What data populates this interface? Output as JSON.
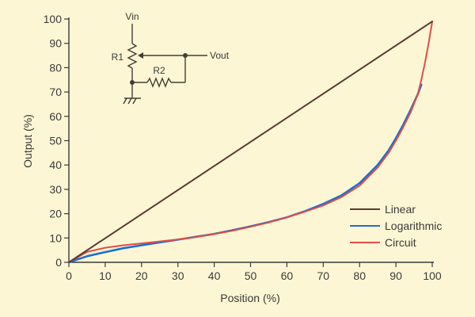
{
  "colors": {
    "background": "#fdf6d4",
    "axis": "#3a3a3a",
    "text": "#3a3a3a",
    "schematic": "#4a3a34",
    "linear": "#5b3a33",
    "logarithmic": "#1a6fd6",
    "circuit": "#e04e45"
  },
  "schematic": {
    "vin_label": "Vin",
    "vout_label": "Vout",
    "r1_label": "R1",
    "r2_label": "R2"
  },
  "chart_data": {
    "type": "line",
    "xlabel": "Position (%)",
    "ylabel": "Output (%)",
    "xlim": [
      0,
      100
    ],
    "ylim": [
      0,
      100
    ],
    "xticks": [
      0,
      10,
      20,
      30,
      40,
      50,
      60,
      70,
      80,
      90,
      100
    ],
    "yticks": [
      0,
      10,
      20,
      30,
      40,
      50,
      60,
      70,
      80,
      90,
      100
    ],
    "grid": false,
    "legend_position": "bottom-right",
    "series": [
      {
        "name": "Linear",
        "color": "#5b3a33",
        "x": [
          0,
          100
        ],
        "y": [
          0,
          99
        ]
      },
      {
        "name": "Logarithmic",
        "color": "#1a6fd6",
        "x": [
          0,
          5,
          10,
          15,
          20,
          25,
          30,
          35,
          40,
          45,
          50,
          55,
          60,
          65,
          70,
          75,
          80,
          85,
          88,
          90,
          92,
          94,
          96,
          97
        ],
        "y": [
          0,
          2.5,
          4.2,
          5.8,
          7.0,
          8.2,
          9.3,
          10.5,
          11.7,
          13.2,
          14.8,
          16.5,
          18.5,
          21.0,
          24.0,
          27.5,
          32.5,
          40.0,
          46.0,
          51.0,
          56.5,
          62.5,
          69.0,
          73.0
        ]
      },
      {
        "name": "Circuit",
        "color": "#e04e45",
        "x": [
          0,
          5,
          10,
          15,
          20,
          25,
          30,
          35,
          40,
          45,
          50,
          55,
          60,
          65,
          70,
          75,
          80,
          85,
          88,
          90,
          92,
          94,
          96,
          97,
          98,
          99,
          100
        ],
        "y": [
          0,
          4.3,
          6.0,
          7.0,
          7.8,
          8.6,
          9.4,
          10.4,
          11.6,
          13.0,
          14.6,
          16.4,
          18.5,
          20.8,
          23.4,
          26.8,
          31.5,
          39.0,
          45.0,
          50.0,
          55.5,
          61.5,
          69.0,
          75.0,
          82.0,
          90.0,
          99.0
        ]
      }
    ]
  }
}
